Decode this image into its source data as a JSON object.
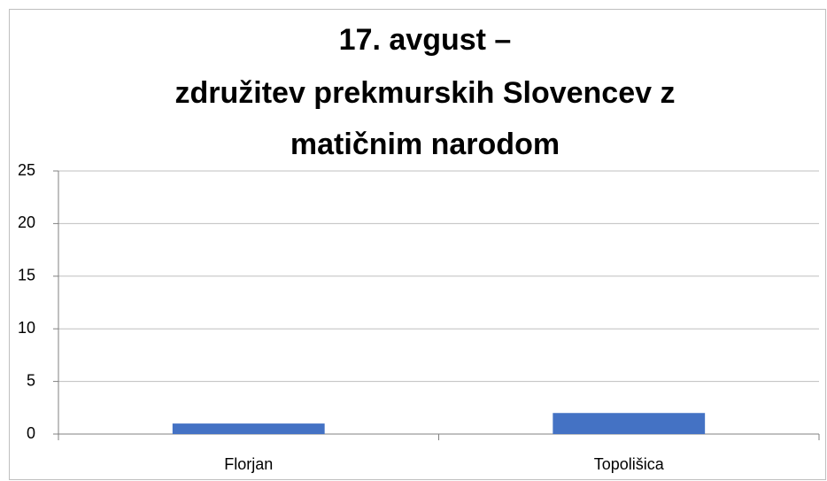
{
  "chart_data": {
    "type": "bar",
    "title": [
      "17. avgust –",
      "združitev prekmurskih Slovencev z",
      "matičnim narodom"
    ],
    "categories": [
      "Florjan",
      "Topolišica"
    ],
    "values": [
      1,
      2
    ],
    "color": "#4472c4",
    "ylim": [
      0,
      25
    ],
    "yticks": [
      0,
      5,
      10,
      15,
      20,
      25
    ],
    "grid": true
  }
}
